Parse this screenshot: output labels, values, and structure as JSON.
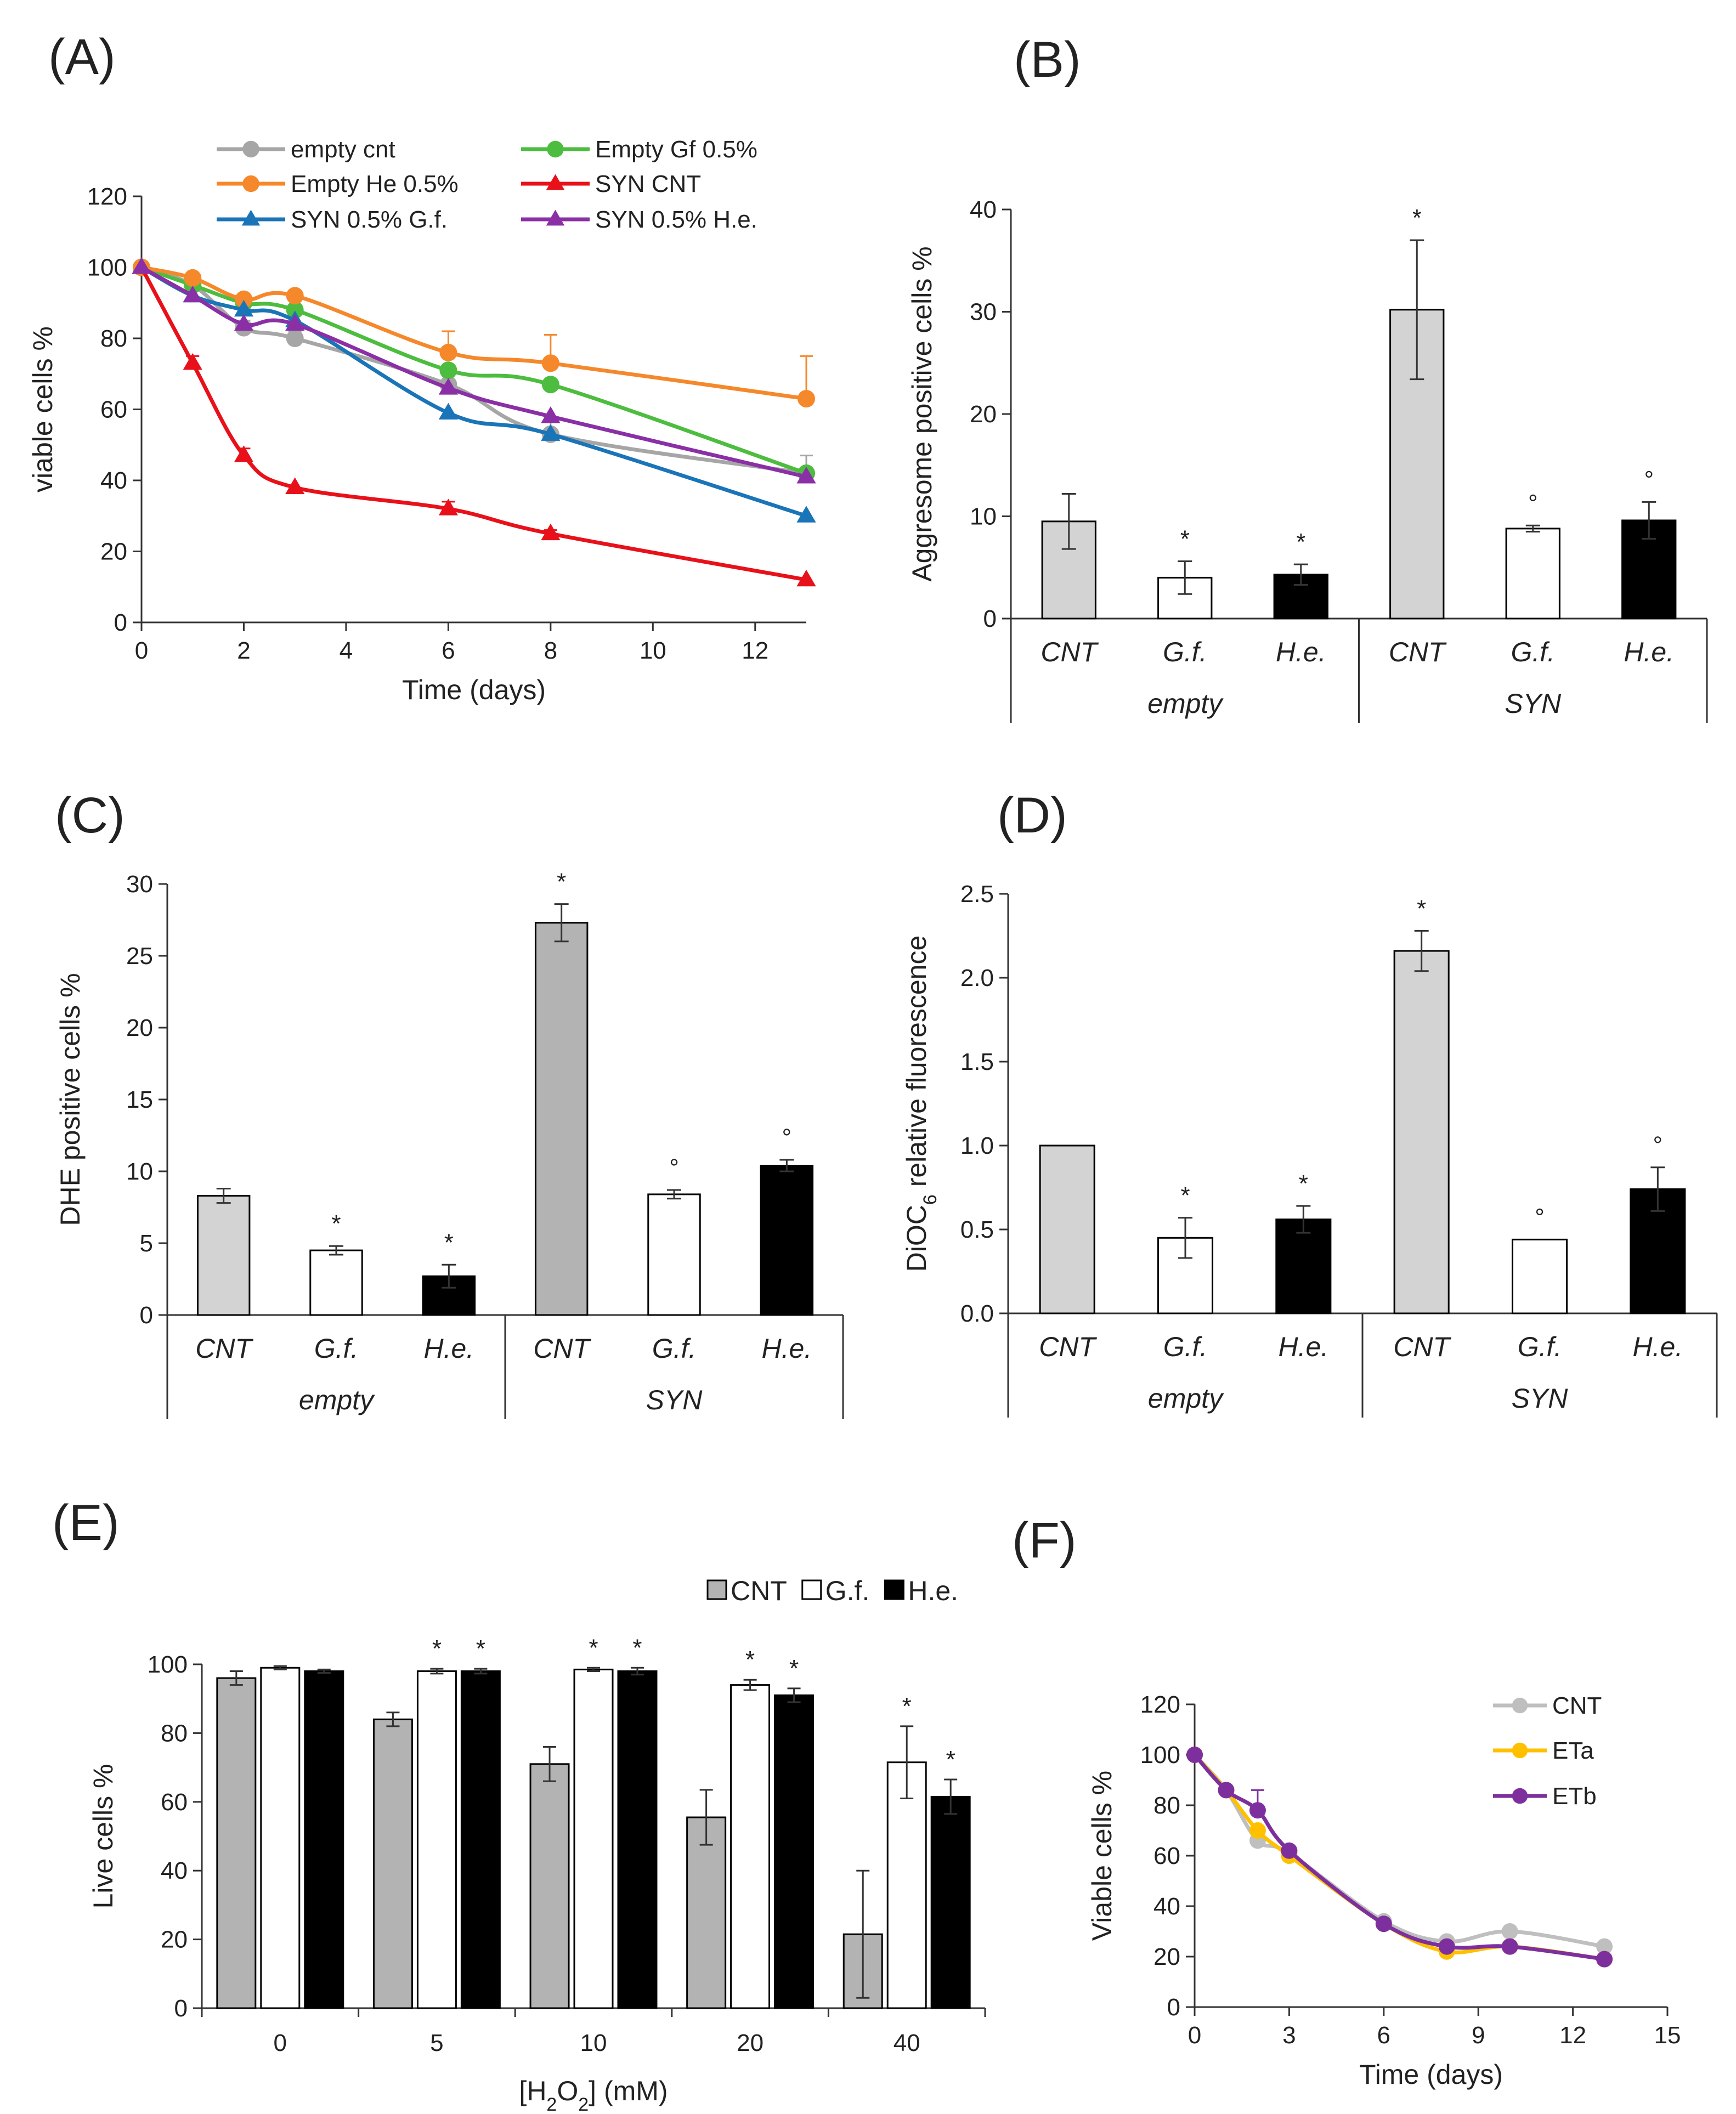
{
  "chart_data": [
    {
      "id": "A",
      "panel_label": "(A)",
      "type": "line",
      "xlabel": "Time (days)",
      "ylabel": "viable cells %",
      "xlim": [
        0,
        13
      ],
      "ylim": [
        0,
        120
      ],
      "xticks": [
        0,
        2,
        4,
        6,
        8,
        10,
        12
      ],
      "yticks": [
        0,
        20,
        40,
        60,
        80,
        100,
        120
      ],
      "series": [
        {
          "name": "empty cnt",
          "color": "#a6a6a6",
          "marker": "circle",
          "x": [
            0,
            1,
            2,
            3,
            6,
            8,
            13
          ],
          "y": [
            100,
            95,
            83,
            80,
            67,
            53,
            42
          ],
          "err": [
            0,
            0,
            2,
            2,
            0,
            4,
            5
          ]
        },
        {
          "name": "Empty Gf 0.5%",
          "color": "#4dbd3f",
          "marker": "circle",
          "x": [
            0,
            1,
            2,
            3,
            6,
            8,
            13
          ],
          "y": [
            100,
            95,
            90,
            88,
            71,
            67,
            42
          ],
          "err": [
            0,
            0,
            0,
            0,
            0,
            0,
            0
          ]
        },
        {
          "name": "Empty He 0.5%",
          "color": "#f5882b",
          "marker": "circle",
          "x": [
            0,
            1,
            2,
            3,
            6,
            8,
            13
          ],
          "y": [
            100,
            97,
            91,
            92,
            76,
            73,
            63
          ],
          "err": [
            0,
            0,
            0,
            0,
            6,
            8,
            12
          ]
        },
        {
          "name": "SYN CNT",
          "color": "#e8111a",
          "marker": "triangle",
          "x": [
            0,
            1,
            2,
            3,
            6,
            8,
            13
          ],
          "y": [
            100,
            73,
            47,
            38,
            32,
            25,
            12
          ],
          "err": [
            0,
            2,
            2,
            0,
            2,
            1,
            0
          ]
        },
        {
          "name": "SYN 0.5% G.f.",
          "color": "#1a74b8",
          "marker": "triangle",
          "x": [
            0,
            1,
            2,
            3,
            6,
            8,
            13
          ],
          "y": [
            100,
            92,
            88,
            85,
            59,
            53,
            30
          ],
          "err": [
            0,
            0,
            0,
            0,
            0,
            0,
            0
          ]
        },
        {
          "name": "SYN 0.5% H.e.",
          "color": "#8a2fa6",
          "marker": "triangle",
          "x": [
            0,
            1,
            2,
            3,
            6,
            8,
            13
          ],
          "y": [
            100,
            92,
            84,
            84,
            66,
            58,
            41
          ],
          "err": [
            0,
            0,
            0,
            0,
            0,
            0,
            0
          ]
        }
      ]
    },
    {
      "id": "B",
      "panel_label": "(B)",
      "type": "bar",
      "ylabel": "Aggresome positive cells %",
      "ylim": [
        0,
        40
      ],
      "yticks": [
        0,
        10,
        20,
        30,
        40
      ],
      "categories": [
        "CNT",
        "G.f.",
        "H.e.",
        "CNT",
        "G.f.",
        "H.e."
      ],
      "groups": [
        "empty",
        "SYN"
      ],
      "values": [
        9.5,
        4.0,
        4.3,
        30.2,
        8.8,
        9.6
      ],
      "errors": [
        2.7,
        1.6,
        1.0,
        6.8,
        0.3,
        1.8
      ],
      "marks": [
        "",
        "*",
        "*",
        "*",
        "°",
        "°"
      ],
      "fills": [
        "#d3d3d3",
        "#ffffff",
        "#000000",
        "#d3d3d3",
        "#ffffff",
        "#000000"
      ]
    },
    {
      "id": "C",
      "panel_label": "(C)",
      "type": "bar",
      "ylabel": "DHE positive cells %",
      "ylim": [
        0,
        30
      ],
      "yticks": [
        0,
        5,
        10,
        15,
        20,
        25,
        30
      ],
      "categories": [
        "CNT",
        "G.f.",
        "H.e.",
        "CNT",
        "G.f.",
        "H.e."
      ],
      "groups": [
        "empty",
        "SYN"
      ],
      "values": [
        8.3,
        4.5,
        2.7,
        27.3,
        8.4,
        10.4
      ],
      "errors": [
        0.5,
        0.3,
        0.8,
        1.3,
        0.3,
        0.4
      ],
      "marks": [
        "",
        "*",
        "*",
        "*",
        "°",
        "°"
      ],
      "fills": [
        "#d3d3d3",
        "#ffffff",
        "#000000",
        "#b3b3b3",
        "#ffffff",
        "#000000"
      ]
    },
    {
      "id": "D",
      "panel_label": "(D)",
      "type": "bar",
      "ylabel_pre": "DiOC",
      "ylabel_sub": "6",
      "ylabel_post": " relative fluorescence",
      "ylim": [
        0,
        2.5
      ],
      "yticks": [
        "0.0",
        "0.5",
        "1.0",
        "1.5",
        "2.0",
        "2.5"
      ],
      "categories": [
        "CNT",
        "G.f.",
        "H.e.",
        "CNT",
        "G.f.",
        "H.e."
      ],
      "groups": [
        "empty",
        "SYN"
      ],
      "values": [
        1.0,
        0.45,
        0.56,
        2.16,
        0.44,
        0.74
      ],
      "errors": [
        0,
        0.12,
        0.08,
        0.12,
        0.0,
        0.13
      ],
      "marks": [
        "",
        "*",
        "*",
        "*",
        "°",
        "°"
      ],
      "fills": [
        "#d3d3d3",
        "#ffffff",
        "#000000",
        "#d3d3d3",
        "#ffffff",
        "#000000"
      ]
    },
    {
      "id": "E",
      "panel_label": "(E)",
      "type": "bar",
      "ylabel": "Live cells %",
      "xlabel_pre": "[H",
      "xlabel_sub1": "2",
      "xlabel_mid": "O",
      "xlabel_sub2": "2",
      "xlabel_post": "] (mM)",
      "ylim": [
        0,
        100
      ],
      "yticks": [
        0,
        20,
        40,
        60,
        80,
        100
      ],
      "categories": [
        "0",
        "5",
        "10",
        "20",
        "40"
      ],
      "series": [
        {
          "name": "CNT",
          "color": "#b3b3b3",
          "values": [
            96,
            84,
            71,
            55.5,
            21.5
          ],
          "errors": [
            2,
            2,
            5,
            8,
            18.5
          ],
          "marks": [
            "",
            "",
            "",
            "",
            ""
          ]
        },
        {
          "name": "G.f.",
          "color": "#ffffff",
          "values": [
            99,
            98,
            98.5,
            94,
            71.5
          ],
          "errors": [
            0.5,
            0.7,
            0.5,
            1.5,
            10.5
          ],
          "marks": [
            "",
            "*",
            "*",
            "*",
            "*"
          ]
        },
        {
          "name": "H.e.",
          "color": "#000000",
          "values": [
            98,
            98,
            98,
            91,
            61.5
          ],
          "errors": [
            0.5,
            0.7,
            1,
            2,
            5
          ],
          "marks": [
            "",
            "*",
            "*",
            "*",
            "*"
          ]
        }
      ]
    },
    {
      "id": "F",
      "panel_label": "(F)",
      "type": "line",
      "xlabel": "Time (days)",
      "ylabel": "Viable cells %",
      "xlim": [
        0,
        15
      ],
      "ylim": [
        0,
        120
      ],
      "xticks": [
        0,
        3,
        6,
        9,
        12,
        15
      ],
      "yticks": [
        0,
        20,
        40,
        60,
        80,
        100,
        120
      ],
      "series": [
        {
          "name": "CNT",
          "color": "#bfbfbf",
          "x": [
            0,
            1,
            2,
            3,
            6,
            8,
            10,
            13
          ],
          "y": [
            100,
            86,
            66,
            61,
            34,
            26,
            30,
            24
          ],
          "err": [
            0,
            0,
            0,
            0,
            0,
            0,
            0,
            0
          ]
        },
        {
          "name": "ETa",
          "color": "#ffc000",
          "x": [
            0,
            1,
            2,
            3,
            6,
            8,
            10,
            13
          ],
          "y": [
            100,
            86,
            70,
            60,
            33,
            22,
            24,
            19
          ],
          "err": [
            0,
            0,
            0,
            0,
            0,
            0,
            0,
            0
          ]
        },
        {
          "name": "ETb",
          "color": "#7e2f9e",
          "x": [
            0,
            1,
            2,
            3,
            6,
            8,
            10,
            13
          ],
          "y": [
            100,
            86,
            78,
            62,
            33,
            24,
            24,
            19
          ],
          "err": [
            0,
            0,
            8,
            0,
            0,
            0,
            0,
            0
          ]
        }
      ]
    }
  ]
}
